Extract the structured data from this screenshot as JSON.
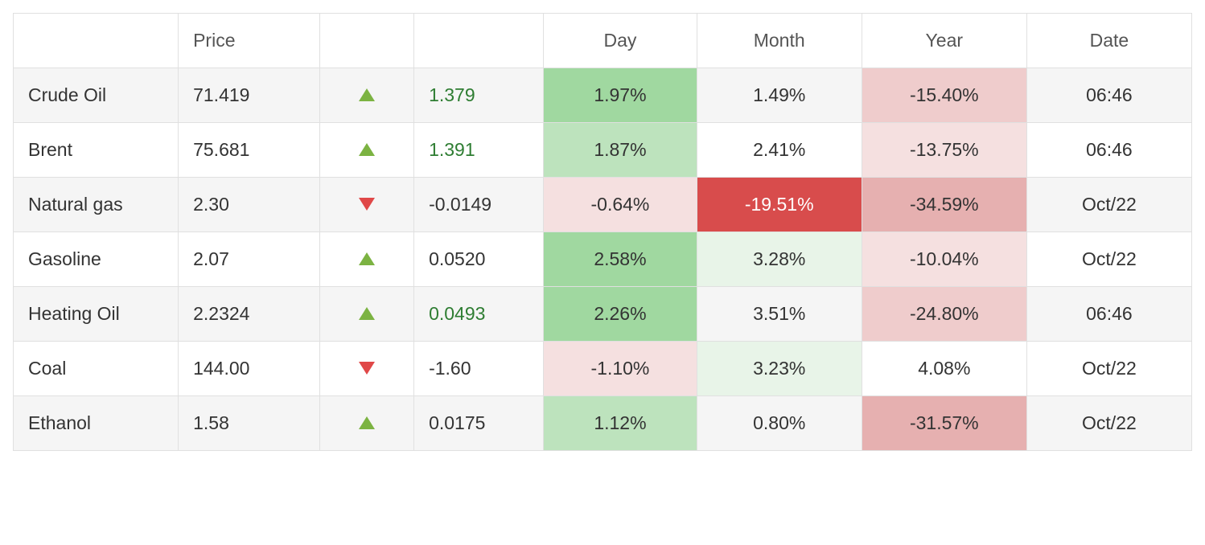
{
  "colors": {
    "border": "#e0e0e0",
    "row_alt": "#f5f5f5",
    "arrow_up": "#7cb342",
    "arrow_down": "#e04848",
    "change_up_text": "#2e7d32",
    "heat": {
      "green_strong": "#a0d8a0",
      "green_med": "#bde3bd",
      "green_light": "#e8f4e8",
      "red_solid": "#d84c4c",
      "red_strong": "#e6b0b0",
      "red_med": "#efcccc",
      "red_light": "#f5e0e0"
    }
  },
  "columns": {
    "name": "",
    "price": "Price",
    "arrow": "",
    "change": "",
    "day": "Day",
    "month": "Month",
    "year": "Year",
    "date": "Date"
  },
  "rows": [
    {
      "name": "Crude Oil",
      "price": "71.419",
      "dir": "up",
      "change": "1.379",
      "change_color": "up",
      "day": {
        "text": "1.97%",
        "bg": "#a0d8a0",
        "fg": "#333333"
      },
      "month": {
        "text": "1.49%",
        "bg": null,
        "fg": "#333333"
      },
      "year": {
        "text": "-15.40%",
        "bg": "#efcccc",
        "fg": "#333333"
      },
      "date": "06:46"
    },
    {
      "name": "Brent",
      "price": "75.681",
      "dir": "up",
      "change": "1.391",
      "change_color": "up",
      "day": {
        "text": "1.87%",
        "bg": "#bde3bd",
        "fg": "#333333"
      },
      "month": {
        "text": "2.41%",
        "bg": null,
        "fg": "#333333"
      },
      "year": {
        "text": "-13.75%",
        "bg": "#f5e0e0",
        "fg": "#333333"
      },
      "date": "06:46"
    },
    {
      "name": "Natural gas",
      "price": "2.30",
      "dir": "down",
      "change": "-0.0149",
      "change_color": "down",
      "day": {
        "text": "-0.64%",
        "bg": "#f5e0e0",
        "fg": "#333333"
      },
      "month": {
        "text": "-19.51%",
        "bg": "#d84c4c",
        "fg": "#ffffff"
      },
      "year": {
        "text": "-34.59%",
        "bg": "#e6b0b0",
        "fg": "#333333"
      },
      "date": "Oct/22"
    },
    {
      "name": "Gasoline",
      "price": "2.07",
      "dir": "up",
      "change": "0.0520",
      "change_color": "down",
      "day": {
        "text": "2.58%",
        "bg": "#a0d8a0",
        "fg": "#333333"
      },
      "month": {
        "text": "3.28%",
        "bg": "#e8f4e8",
        "fg": "#333333"
      },
      "year": {
        "text": "-10.04%",
        "bg": "#f5e0e0",
        "fg": "#333333"
      },
      "date": "Oct/22"
    },
    {
      "name": "Heating Oil",
      "price": "2.2324",
      "dir": "up",
      "change": "0.0493",
      "change_color": "up",
      "day": {
        "text": "2.26%",
        "bg": "#a0d8a0",
        "fg": "#333333"
      },
      "month": {
        "text": "3.51%",
        "bg": null,
        "fg": "#333333"
      },
      "year": {
        "text": "-24.80%",
        "bg": "#efcccc",
        "fg": "#333333"
      },
      "date": "06:46"
    },
    {
      "name": "Coal",
      "price": "144.00",
      "dir": "down",
      "change": "-1.60",
      "change_color": "down",
      "day": {
        "text": "-1.10%",
        "bg": "#f5e0e0",
        "fg": "#333333"
      },
      "month": {
        "text": "3.23%",
        "bg": "#e8f4e8",
        "fg": "#333333"
      },
      "year": {
        "text": "4.08%",
        "bg": null,
        "fg": "#333333"
      },
      "date": "Oct/22"
    },
    {
      "name": "Ethanol",
      "price": "1.58",
      "dir": "up",
      "change": "0.0175",
      "change_color": "down",
      "day": {
        "text": "1.12%",
        "bg": "#bde3bd",
        "fg": "#333333"
      },
      "month": {
        "text": "0.80%",
        "bg": null,
        "fg": "#333333"
      },
      "year": {
        "text": "-31.57%",
        "bg": "#e6b0b0",
        "fg": "#333333"
      },
      "date": "Oct/22"
    }
  ]
}
